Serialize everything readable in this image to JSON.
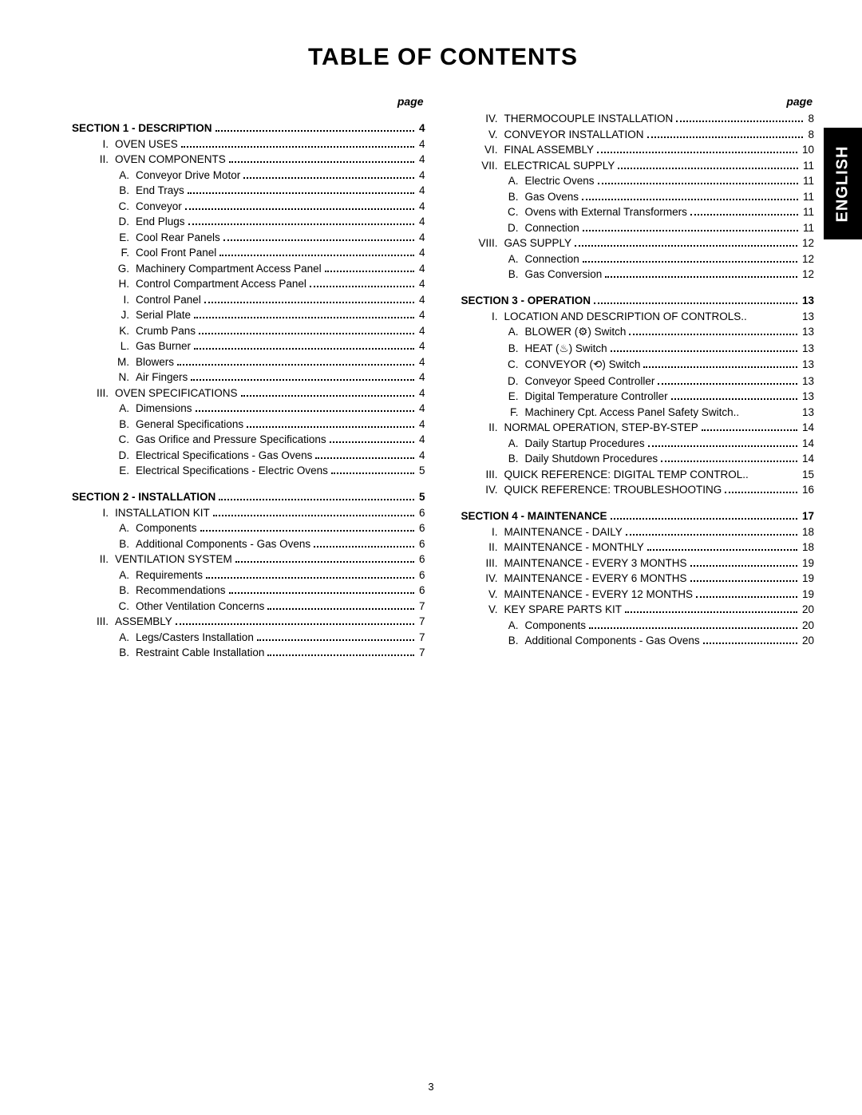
{
  "title": "TABLE OF CONTENTS",
  "page_header_label": "page",
  "side_tab": "ENGLISH",
  "page_number": "3",
  "columns": [
    [
      {
        "level": 0,
        "marker": "",
        "text": "SECTION 1 - DESCRIPTION",
        "page": "4",
        "bold": true
      },
      {
        "level": 1,
        "marker": "I.",
        "text": "OVEN USES",
        "page": "4"
      },
      {
        "level": 1,
        "marker": "II.",
        "text": "OVEN COMPONENTS",
        "page": "4"
      },
      {
        "level": 2,
        "marker": "A.",
        "text": "Conveyor Drive Motor",
        "page": "4"
      },
      {
        "level": 2,
        "marker": "B.",
        "text": "End Trays",
        "page": "4"
      },
      {
        "level": 2,
        "marker": "C.",
        "text": "Conveyor",
        "page": "4"
      },
      {
        "level": 2,
        "marker": "D.",
        "text": "End Plugs",
        "page": "4"
      },
      {
        "level": 2,
        "marker": "E.",
        "text": "Cool Rear Panels",
        "page": "4"
      },
      {
        "level": 2,
        "marker": "F.",
        "text": "Cool Front Panel",
        "page": "4"
      },
      {
        "level": 2,
        "marker": "G.",
        "text": "Machinery Compartment Access Panel",
        "page": "4"
      },
      {
        "level": 2,
        "marker": "H.",
        "text": "Control Compartment Access Panel",
        "page": "4"
      },
      {
        "level": 2,
        "marker": "I.",
        "text": "Control Panel",
        "page": "4"
      },
      {
        "level": 2,
        "marker": "J.",
        "text": "Serial Plate",
        "page": "4"
      },
      {
        "level": 2,
        "marker": "K.",
        "text": "Crumb Pans",
        "page": "4"
      },
      {
        "level": 2,
        "marker": "L.",
        "text": "Gas Burner",
        "page": "4"
      },
      {
        "level": 2,
        "marker": "M.",
        "text": "Blowers",
        "page": "4"
      },
      {
        "level": 2,
        "marker": "N.",
        "text": "Air Fingers",
        "page": "4"
      },
      {
        "level": 1,
        "marker": "III.",
        "text": "OVEN SPECIFICATIONS",
        "page": "4"
      },
      {
        "level": 2,
        "marker": "A.",
        "text": "Dimensions",
        "page": "4"
      },
      {
        "level": 2,
        "marker": "B.",
        "text": "General Specifications",
        "page": "4"
      },
      {
        "level": 2,
        "marker": "C.",
        "text": "Gas Orifice and Pressure Specifications",
        "page": "4"
      },
      {
        "level": 2,
        "marker": "D.",
        "text": "Electrical Specifications - Gas Ovens",
        "page": "4"
      },
      {
        "level": 2,
        "marker": "E.",
        "text": "Electrical Specifications - Electric Ovens",
        "page": "5"
      },
      {
        "level": 0,
        "marker": "",
        "text": "SECTION 2 - INSTALLATION",
        "page": "5",
        "bold": true
      },
      {
        "level": 1,
        "marker": "I.",
        "text": "INSTALLATION KIT",
        "page": "6"
      },
      {
        "level": 2,
        "marker": "A.",
        "text": "Components",
        "page": "6"
      },
      {
        "level": 2,
        "marker": "B.",
        "text": "Additional Components - Gas Ovens",
        "page": "6"
      },
      {
        "level": 1,
        "marker": "II.",
        "text": "VENTILATION SYSTEM",
        "page": "6"
      },
      {
        "level": 2,
        "marker": "A.",
        "text": "Requirements",
        "page": "6"
      },
      {
        "level": 2,
        "marker": "B.",
        "text": "Recommendations",
        "page": "6"
      },
      {
        "level": 2,
        "marker": "C.",
        "text": "Other Ventilation Concerns",
        "page": "7"
      },
      {
        "level": 1,
        "marker": "III.",
        "text": "ASSEMBLY",
        "page": "7"
      },
      {
        "level": 2,
        "marker": "A.",
        "text": "Legs/Casters Installation",
        "page": "7"
      },
      {
        "level": 2,
        "marker": "B.",
        "text": "Restraint Cable Installation",
        "page": "7"
      }
    ],
    [
      {
        "level": 1,
        "marker": "IV.",
        "text": "THERMOCOUPLE INSTALLATION",
        "page": "8"
      },
      {
        "level": 1,
        "marker": "V.",
        "text": "CONVEYOR INSTALLATION",
        "page": "8"
      },
      {
        "level": 1,
        "marker": "VI.",
        "text": "FINAL ASSEMBLY",
        "page": "10"
      },
      {
        "level": 1,
        "marker": "VII.",
        "text": "ELECTRICAL SUPPLY",
        "page": "11"
      },
      {
        "level": 2,
        "marker": "A.",
        "text": "Electric Ovens",
        "page": "11"
      },
      {
        "level": 2,
        "marker": "B.",
        "text": "Gas Ovens",
        "page": "11"
      },
      {
        "level": 2,
        "marker": "C.",
        "text": "Ovens with External Transformers",
        "page": "11"
      },
      {
        "level": 2,
        "marker": "D.",
        "text": "Connection",
        "page": "11"
      },
      {
        "level": 1,
        "marker": "VIII.",
        "text": "GAS SUPPLY",
        "page": "12"
      },
      {
        "level": 2,
        "marker": "A.",
        "text": "Connection",
        "page": "12"
      },
      {
        "level": 2,
        "marker": "B.",
        "text": "Gas Conversion",
        "page": "12"
      },
      {
        "level": 0,
        "marker": "",
        "text": "SECTION 3 - OPERATION",
        "page": "13",
        "bold": true
      },
      {
        "level": 1,
        "marker": "I.",
        "text": "LOCATION AND DESCRIPTION OF CONTROLS",
        "page": "13",
        "leader": "short"
      },
      {
        "level": 2,
        "marker": "A.",
        "text": "BLOWER (⚙) Switch",
        "page": "13"
      },
      {
        "level": 2,
        "marker": "B.",
        "text": "HEAT (♨) Switch",
        "page": "13"
      },
      {
        "level": 2,
        "marker": "C.",
        "text": "CONVEYOR (⟲) Switch",
        "page": "13"
      },
      {
        "level": 2,
        "marker": "D.",
        "text": "Conveyor Speed Controller",
        "page": "13"
      },
      {
        "level": 2,
        "marker": "E.",
        "text": "Digital Temperature Controller",
        "page": "13"
      },
      {
        "level": 2,
        "marker": "F.",
        "text": "Machinery Cpt. Access Panel Safety Switch",
        "page": "13",
        "leader": "short"
      },
      {
        "level": 1,
        "marker": "II.",
        "text": "NORMAL OPERATION, STEP-BY-STEP",
        "page": "14"
      },
      {
        "level": 2,
        "marker": "A.",
        "text": "Daily Startup Procedures",
        "page": "14"
      },
      {
        "level": 2,
        "marker": "B.",
        "text": "Daily Shutdown Procedures",
        "page": "14"
      },
      {
        "level": 1,
        "marker": "III.",
        "text": "QUICK REFERENCE: DIGITAL TEMP CONTROL",
        "page": "15",
        "leader": "short"
      },
      {
        "level": 1,
        "marker": "IV.",
        "text": "QUICK REFERENCE: TROUBLESHOOTING",
        "page": "16"
      },
      {
        "level": 0,
        "marker": "",
        "text": "SECTION 4 - MAINTENANCE",
        "page": "17",
        "bold": true
      },
      {
        "level": 1,
        "marker": "I.",
        "text": "MAINTENANCE - DAILY",
        "page": "18"
      },
      {
        "level": 1,
        "marker": "II.",
        "text": "MAINTENANCE - MONTHLY",
        "page": "18"
      },
      {
        "level": 1,
        "marker": "III.",
        "text": "MAINTENANCE - EVERY 3 MONTHS",
        "page": "19"
      },
      {
        "level": 1,
        "marker": "IV.",
        "text": "MAINTENANCE - EVERY 6 MONTHS",
        "page": "19"
      },
      {
        "level": 1,
        "marker": "V.",
        "text": "MAINTENANCE - EVERY 12 MONTHS",
        "page": "19"
      },
      {
        "level": 1,
        "marker": "V.",
        "text": "KEY SPARE PARTS KIT",
        "page": "20"
      },
      {
        "level": 2,
        "marker": "A.",
        "text": "Components",
        "page": "20"
      },
      {
        "level": 2,
        "marker": "B.",
        "text": "Additional Components - Gas Ovens",
        "page": "20"
      }
    ]
  ]
}
